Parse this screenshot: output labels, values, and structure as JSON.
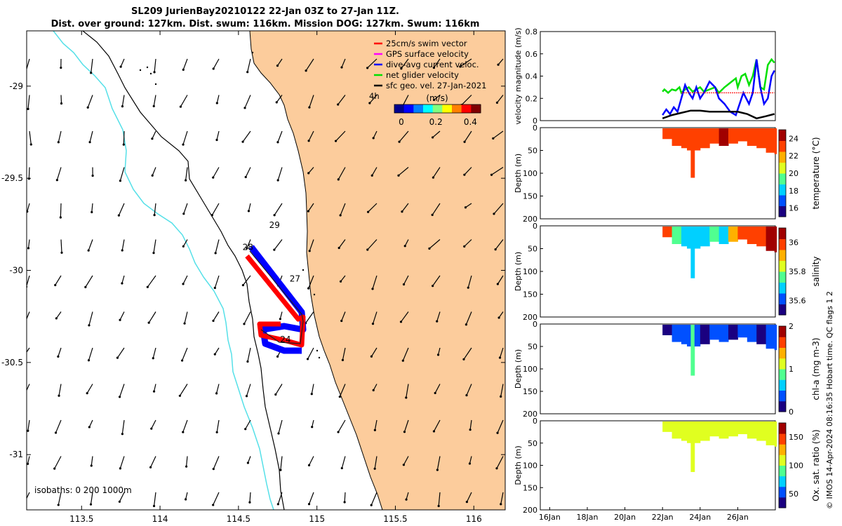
{
  "title": {
    "line1": "SL209 JurienBay20210122 22-Jan 03Z to 27-Jan 11Z.",
    "line2": "Dist. over ground: 127km. Dist. swum: 116km. Mission DOG: 127km. Swum: 116km"
  },
  "credit": "© IMOS 14-Apr-2024 08:16:35 Hobart time. QC flags 1  2",
  "colors": {
    "land": "#fccc9c",
    "coast": "#000000",
    "isobath_200": "#55e0e8",
    "swim": "#ff0000",
    "gps": "#ff00ff",
    "dive_avg": "#0000ff",
    "net": "#00e000",
    "sfc": "#000000"
  },
  "chart_data": [
    {
      "type": "map",
      "xlim": [
        113.15,
        116.2
      ],
      "ylim": [
        -31.3,
        -28.7
      ],
      "x_ticks": [
        113.5,
        114,
        114.5,
        115,
        115.5,
        116
      ],
      "x_tick_labels": [
        "113.5",
        "114",
        "114.5",
        "115",
        "115.5",
        "116"
      ],
      "y_ticks": [
        -29,
        -29.5,
        -30,
        -30.5,
        -31
      ],
      "y_tick_labels": [
        "-29",
        "-29.5",
        "-30",
        "-30.5",
        "-31"
      ],
      "legend": {
        "entries": [
          "25cm/s swim vector",
          "GPS surface velocity",
          "dive-avg current veloc.",
          "net glider velocity",
          "sfc geo. vel. 27-Jan-2021"
        ],
        "extra": "4h"
      },
      "colorbar": {
        "label": "(m/s)",
        "ticks": [
          "0",
          "0.2",
          "0.4"
        ],
        "range": [
          0,
          0.5
        ]
      },
      "isobaths_label": "isobaths: 0   200  1000m",
      "day_labels": [
        {
          "text": "29",
          "lon": 114.73,
          "lat": -29.77
        },
        {
          "text": "28",
          "lon": 114.56,
          "lat": -29.89
        },
        {
          "text": "27",
          "lon": 114.86,
          "lat": -30.06
        },
        {
          "text": "24",
          "lon": 114.8,
          "lat": -30.39
        }
      ]
    },
    {
      "type": "line",
      "ylabel": "velocity magnitude (m/s)",
      "ylim": [
        0,
        0.8
      ],
      "y_ticks": [
        "0",
        "0.2",
        "0.4",
        "0.6",
        "0.8"
      ],
      "xlim_days": [
        15.5,
        28.0
      ],
      "series": [
        {
          "color": "#00e000",
          "x": [
            22.0,
            22.1,
            22.3,
            22.5,
            22.7,
            22.9,
            23.0,
            23.2,
            23.4,
            23.6,
            23.8,
            24.0,
            24.2,
            24.5,
            24.8,
            25.0,
            25.3,
            25.6,
            25.9,
            26.0,
            26.2,
            26.4,
            26.6,
            26.8,
            27.0,
            27.2,
            27.4,
            27.6,
            27.8,
            27.95
          ],
          "y": [
            0.26,
            0.28,
            0.25,
            0.28,
            0.27,
            0.3,
            0.25,
            0.28,
            0.3,
            0.26,
            0.28,
            0.3,
            0.26,
            0.28,
            0.3,
            0.25,
            0.3,
            0.34,
            0.38,
            0.3,
            0.4,
            0.42,
            0.32,
            0.4,
            0.55,
            0.3,
            0.28,
            0.5,
            0.55,
            0.52
          ]
        },
        {
          "color": "#0000ff",
          "x": [
            22.0,
            22.2,
            22.4,
            22.6,
            22.8,
            23.0,
            23.2,
            23.4,
            23.6,
            23.8,
            24.0,
            24.2,
            24.5,
            24.8,
            25.0,
            25.3,
            25.6,
            25.9,
            26.0,
            26.3,
            26.6,
            26.8,
            27.0,
            27.2,
            27.4,
            27.6,
            27.8,
            27.95
          ],
          "y": [
            0.05,
            0.1,
            0.06,
            0.12,
            0.08,
            0.2,
            0.32,
            0.25,
            0.2,
            0.3,
            0.2,
            0.25,
            0.35,
            0.3,
            0.2,
            0.15,
            0.08,
            0.05,
            0.1,
            0.25,
            0.15,
            0.25,
            0.55,
            0.3,
            0.15,
            0.2,
            0.4,
            0.45
          ]
        },
        {
          "color": "#ff0000",
          "x": [
            23.0,
            24.0,
            25.0,
            26.0,
            27.0,
            27.95
          ],
          "y": [
            0.25,
            0.25,
            0.25,
            0.25,
            0.25,
            0.25
          ]
        },
        {
          "color": "#000000",
          "x": [
            22.0,
            22.5,
            23.0,
            23.5,
            24.0,
            24.5,
            25.0,
            25.5,
            26.0,
            26.5,
            27.0,
            27.5,
            27.95
          ],
          "y": [
            0.02,
            0.05,
            0.07,
            0.09,
            0.09,
            0.08,
            0.08,
            0.08,
            0.08,
            0.06,
            0.02,
            0.04,
            0.06
          ]
        }
      ]
    },
    {
      "type": "heatmap",
      "ylabel": "Depth (m)",
      "cbar_label": "temperature (°C)",
      "y_ticks": [
        "0",
        "50",
        "100",
        "150",
        "200"
      ],
      "cbar_ticks": [
        "16",
        "18",
        "20",
        "22",
        "24"
      ],
      "cbar_range": [
        15,
        25
      ],
      "profile_days": [
        22.0,
        22.5,
        23.0,
        23.3,
        23.5,
        23.7,
        24.0,
        24.5,
        25.0,
        25.5,
        26.0,
        26.5,
        27.0,
        27.5,
        27.95
      ],
      "profile_depth": [
        25,
        40,
        45,
        50,
        110,
        50,
        45,
        35,
        40,
        35,
        30,
        40,
        45,
        55,
        58
      ],
      "values": [
        23.2,
        23.5,
        23.4,
        23.6,
        23.0,
        23.5,
        23.7,
        23.3,
        23.8,
        23.6,
        23.4,
        23.7,
        23.5,
        23.3,
        23.6
      ]
    },
    {
      "type": "heatmap",
      "ylabel": "Depth (m)",
      "cbar_label": "salinity",
      "y_ticks": [
        "0",
        "50",
        "100",
        "150",
        "200"
      ],
      "cbar_ticks": [
        "35.6",
        "35.8",
        "36"
      ],
      "cbar_range": [
        35.5,
        36.1
      ],
      "profile_days": [
        22.0,
        22.5,
        23.0,
        23.3,
        23.5,
        23.7,
        24.0,
        24.5,
        25.0,
        25.5,
        26.0,
        26.5,
        27.0,
        27.5,
        27.95
      ],
      "profile_depth": [
        25,
        40,
        45,
        50,
        115,
        50,
        45,
        35,
        40,
        35,
        30,
        40,
        45,
        55,
        58
      ],
      "values": [
        35.95,
        35.75,
        35.72,
        35.7,
        35.66,
        35.7,
        35.72,
        35.74,
        35.72,
        35.9,
        35.96,
        36.0,
        36.02,
        36.05,
        36.03
      ]
    },
    {
      "type": "heatmap",
      "ylabel": "Depth (m)",
      "cbar_label": "chl-a (mg m-3)",
      "y_ticks": [
        "0",
        "50",
        "100",
        "150",
        "200"
      ],
      "cbar_ticks": [
        "0",
        "1",
        "2"
      ],
      "cbar_range": [
        0,
        2
      ],
      "profile_days": [
        22.0,
        22.5,
        23.0,
        23.3,
        23.5,
        23.7,
        24.0,
        24.5,
        25.0,
        25.5,
        26.0,
        26.5,
        27.0,
        27.5,
        27.95
      ],
      "profile_depth": [
        25,
        40,
        45,
        50,
        115,
        50,
        45,
        35,
        40,
        35,
        30,
        40,
        45,
        55,
        58
      ],
      "values": [
        0.2,
        0.3,
        0.25,
        0.3,
        0.9,
        0.3,
        0.2,
        0.25,
        0.3,
        0.2,
        0.25,
        0.3,
        0.2,
        0.25,
        0.3
      ]
    },
    {
      "type": "heatmap",
      "ylabel": "Depth (m)",
      "cbar_label": "Ox. sat. ratio (%)",
      "y_ticks": [
        "0",
        "50",
        "100",
        "150",
        "200"
      ],
      "cbar_ticks": [
        "50",
        "100",
        "150"
      ],
      "cbar_range": [
        25,
        175
      ],
      "x_tick_labels": [
        "16Jan",
        "18Jan",
        "20Jan",
        "22Jan",
        "24Jan",
        "26Jan"
      ],
      "x_tick_days": [
        16,
        18,
        20,
        22,
        24,
        26
      ],
      "profile_days": [
        22.0,
        22.5,
        23.0,
        23.3,
        23.5,
        23.7,
        24.0,
        24.5,
        25.0,
        25.5,
        26.0,
        26.5,
        27.0,
        27.5,
        27.95
      ],
      "profile_depth": [
        25,
        40,
        45,
        50,
        115,
        50,
        45,
        35,
        40,
        35,
        30,
        40,
        45,
        55,
        58
      ],
      "values": [
        108,
        110,
        106,
        108,
        102,
        108,
        110,
        107,
        109,
        108,
        110,
        108,
        106,
        108,
        110
      ]
    }
  ]
}
